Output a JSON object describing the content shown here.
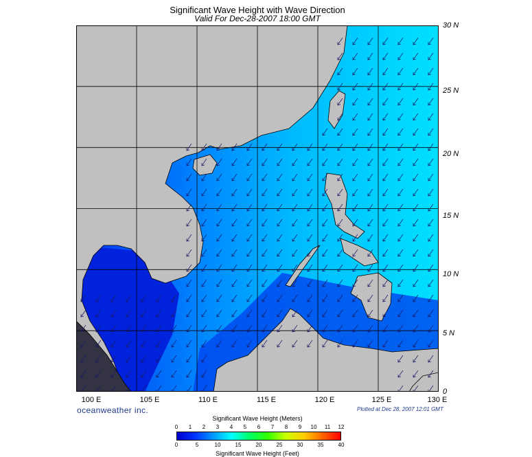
{
  "header": {
    "title": "Significant Wave Height with Wave Direction",
    "subtitle": "Valid For Dec-28-2007 18:00 GMT"
  },
  "axes": {
    "latitudes": [
      "30 N",
      "25 N",
      "20 N",
      "15 N",
      "10 N",
      "5 N",
      "0"
    ],
    "longitudes": [
      "100 E",
      "105 E",
      "110 E",
      "115 E",
      "120 E",
      "125 E",
      "130 E"
    ]
  },
  "footer": {
    "brand": "oceanweather inc.",
    "plotted": "Plotted at Dec 28, 2007 12:01 GMT"
  },
  "legend": {
    "meters_title": "Significant Wave Height (Meters)",
    "meters_ticks": [
      "0",
      "1",
      "2",
      "3",
      "4",
      "5",
      "6",
      "7",
      "8",
      "9",
      "10",
      "11",
      "12"
    ],
    "feet_title": "Significant Wave Height (Feet)",
    "feet_ticks": [
      "0",
      "5",
      "10",
      "15",
      "20",
      "25",
      "30",
      "35",
      "40"
    ],
    "colors": [
      "#0000cc",
      "#0033ff",
      "#0099ff",
      "#00ffff",
      "#00ff66",
      "#33ff00",
      "#ccff00",
      "#ffcc00",
      "#ff6600",
      "#ff0000"
    ]
  },
  "map_style": {
    "land": "#c0c0c0",
    "sea_deep": "#0022dd",
    "sea_mid": "#0066ff",
    "sea_light": "#00ccff",
    "grid": "#000000",
    "arrow": "#1a1a66"
  }
}
